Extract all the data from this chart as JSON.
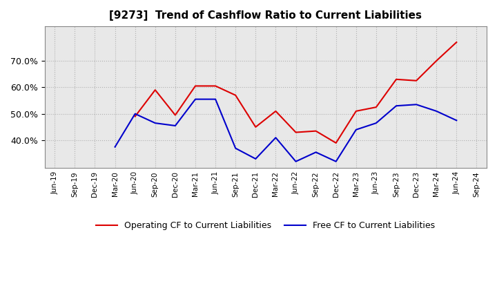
{
  "title": "[9273]  Trend of Cashflow Ratio to Current Liabilities",
  "x_labels": [
    "Jun-19",
    "Sep-19",
    "Dec-19",
    "Mar-20",
    "Jun-20",
    "Sep-20",
    "Dec-20",
    "Mar-21",
    "Jun-21",
    "Sep-21",
    "Dec-21",
    "Mar-22",
    "Jun-22",
    "Sep-22",
    "Dec-22",
    "Mar-23",
    "Jun-23",
    "Sep-23",
    "Dec-23",
    "Mar-24",
    "Jun-24",
    "Sep-24"
  ],
  "operating_cf": [
    null,
    null,
    null,
    null,
    0.49,
    0.59,
    0.495,
    0.605,
    0.605,
    0.57,
    0.45,
    0.51,
    0.43,
    0.435,
    0.39,
    0.51,
    0.525,
    0.63,
    0.625,
    0.7,
    0.77,
    null
  ],
  "free_cf": [
    null,
    null,
    null,
    0.375,
    0.5,
    0.465,
    0.455,
    0.555,
    0.555,
    0.37,
    0.33,
    0.41,
    0.32,
    0.355,
    0.32,
    0.44,
    0.465,
    0.53,
    0.535,
    0.51,
    0.475,
    null
  ],
  "operating_color": "#dd0000",
  "free_color": "#0000cc",
  "ylim_min": 0.295,
  "ylim_max": 0.83,
  "yticks": [
    0.4,
    0.5,
    0.6,
    0.7
  ],
  "legend_operating": "Operating CF to Current Liabilities",
  "legend_free": "Free CF to Current Liabilities",
  "background_color": "#ffffff",
  "plot_bg_color": "#e8e8e8",
  "grid_color": "#b0b0b0",
  "title_fontsize": 11,
  "tick_fontsize": 7.5
}
